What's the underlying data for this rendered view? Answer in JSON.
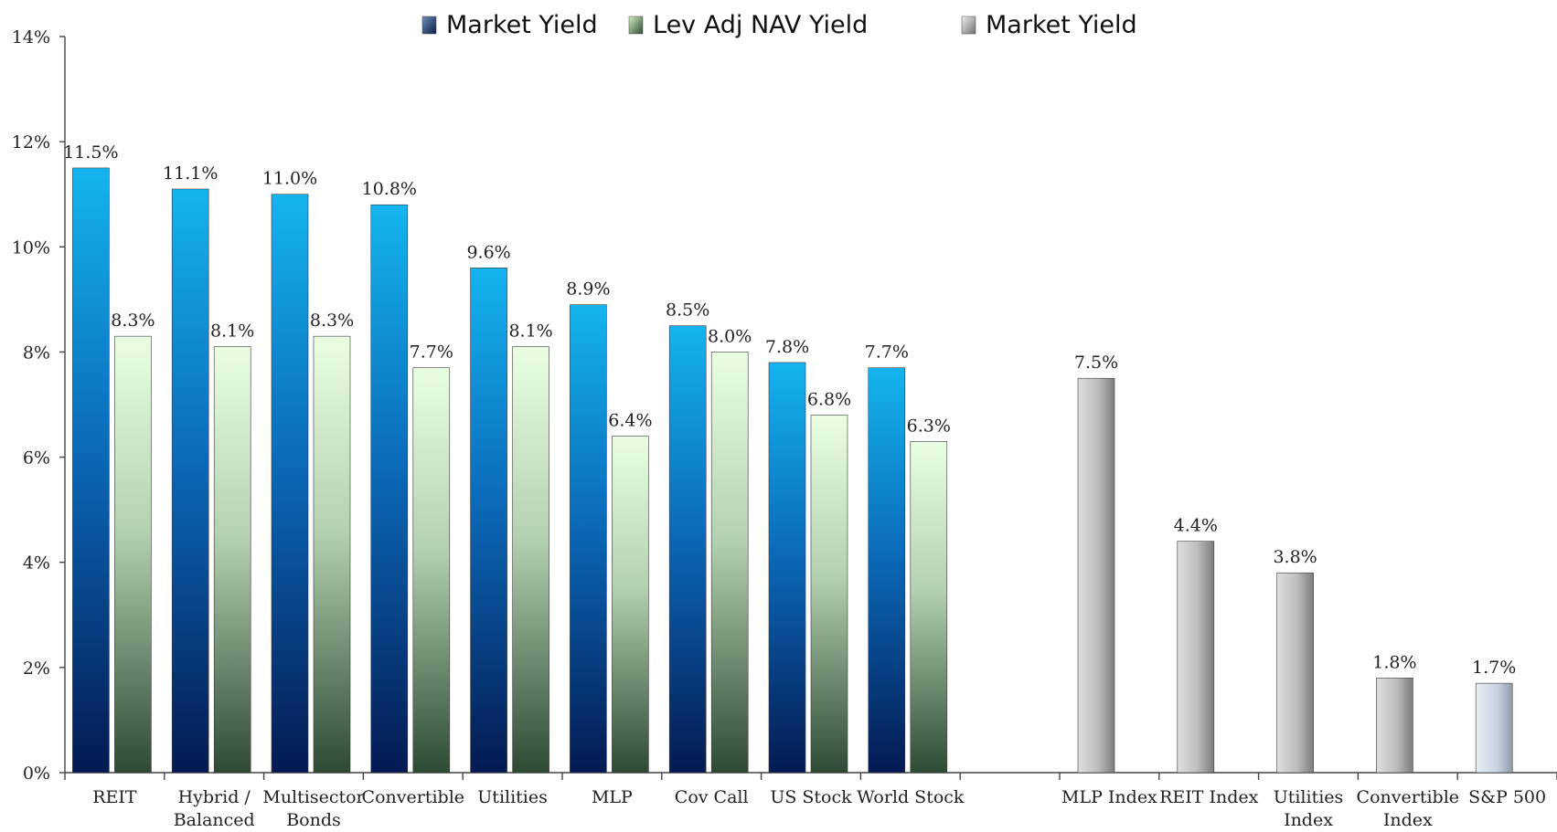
{
  "chart_data": {
    "type": "bar",
    "ylim": [
      0,
      14
    ],
    "yticks": [
      0,
      2,
      4,
      6,
      8,
      10,
      12,
      14
    ],
    "y_tick_suffix": "%",
    "grid": false,
    "legend_placement": "top-center",
    "categories": [
      [
        "REIT"
      ],
      [
        "Hybrid /",
        "Balanced"
      ],
      [
        "Multisector",
        "Bonds"
      ],
      [
        "Convertible"
      ],
      [
        "Utilities"
      ],
      [
        "MLP"
      ],
      [
        "Cov Call"
      ],
      [
        "US Stock"
      ],
      [
        "World Stock"
      ],
      [
        ""
      ],
      [
        "MLP Index"
      ],
      [
        "REIT Index"
      ],
      [
        "Utilities",
        "Index"
      ],
      [
        "Convertible",
        "Index"
      ],
      [
        "S&P 500"
      ]
    ],
    "series": [
      {
        "name": "Market Yield",
        "color": "#1a7fd0",
        "values": [
          11.5,
          11.1,
          11.0,
          10.8,
          9.6,
          8.9,
          8.5,
          7.8,
          7.7,
          null,
          null,
          null,
          null,
          null,
          null
        ],
        "labels": [
          "11.5%",
          "11.1%",
          "11.0%",
          "10.8%",
          "9.6%",
          "8.9%",
          "8.5%",
          "7.8%",
          "7.7%",
          "",
          "",
          "",
          "",
          "",
          ""
        ]
      },
      {
        "name": "Lev Adj NAV Yield",
        "color": "#6e9a78",
        "values": [
          8.3,
          8.1,
          8.3,
          7.7,
          8.1,
          6.4,
          8.0,
          6.8,
          6.3,
          null,
          null,
          null,
          null,
          null,
          null
        ],
        "labels": [
          "8.3%",
          "8.1%",
          "8.3%",
          "7.7%",
          "8.1%",
          "6.4%",
          "8.0%",
          "6.8%",
          "6.3%",
          "",
          "",
          "",
          "",
          "",
          ""
        ]
      },
      {
        "name": "Market Yield",
        "color": "#a8a8a8",
        "values": [
          null,
          null,
          null,
          null,
          null,
          null,
          null,
          null,
          null,
          null,
          7.5,
          4.4,
          3.8,
          1.8,
          1.7
        ],
        "labels": [
          "",
          "",
          "",
          "",
          "",
          "",
          "",
          "",
          "",
          "",
          "7.5%",
          "4.4%",
          "3.8%",
          "1.8%",
          "1.7%"
        ]
      }
    ]
  }
}
